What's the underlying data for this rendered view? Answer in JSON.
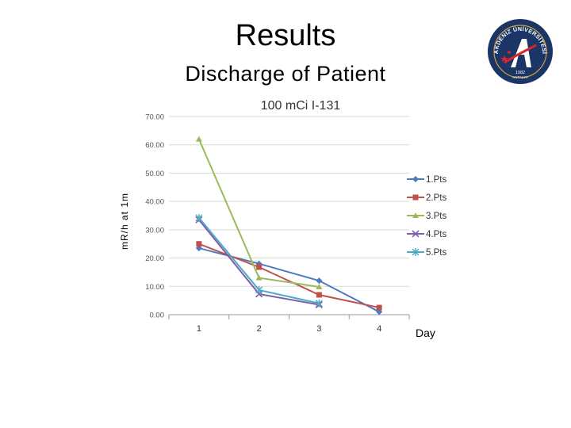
{
  "slide": {
    "title": "Results",
    "subtitle": "Discharge of Patient"
  },
  "logo": {
    "icon": "university-seal-icon",
    "top_text": "AKDENİZ ÜNİVERSİTESİ",
    "year": "1982",
    "city": "ANTALYA",
    "colors": {
      "ring": "#1b3566",
      "accent": "#d8262c",
      "gold": "#c9a43a"
    }
  },
  "chart_data": {
    "type": "line",
    "title": "100 mCi I-131",
    "xlabel": "Day",
    "ylabel": "mR/h at 1m",
    "categories": [
      "1",
      "2",
      "3",
      "4"
    ],
    "ylim": [
      0,
      70
    ],
    "yticks": [
      "0.00",
      "10.00",
      "20.00",
      "30.00",
      "40.00",
      "50.00",
      "60.00",
      "70.00"
    ],
    "grid": true,
    "legend_position": "right",
    "series": [
      {
        "name": "1.Pts",
        "color": "#4a7abf",
        "marker": "diamond",
        "values": [
          23.5,
          18.0,
          12.0,
          1.0
        ]
      },
      {
        "name": "2.Pts",
        "color": "#c0504d",
        "marker": "square",
        "values": [
          25.0,
          16.8,
          7.0,
          2.5
        ]
      },
      {
        "name": "3.Pts",
        "color": "#9bbb59",
        "marker": "triangle",
        "values": [
          62.0,
          13.0,
          9.8,
          null
        ]
      },
      {
        "name": "4.Pts",
        "color": "#7f5fa8",
        "marker": "x",
        "values": [
          33.5,
          7.3,
          3.5,
          null
        ]
      },
      {
        "name": "5.Pts",
        "color": "#4bacc6",
        "marker": "star",
        "values": [
          34.2,
          8.7,
          4.0,
          null
        ]
      }
    ]
  }
}
